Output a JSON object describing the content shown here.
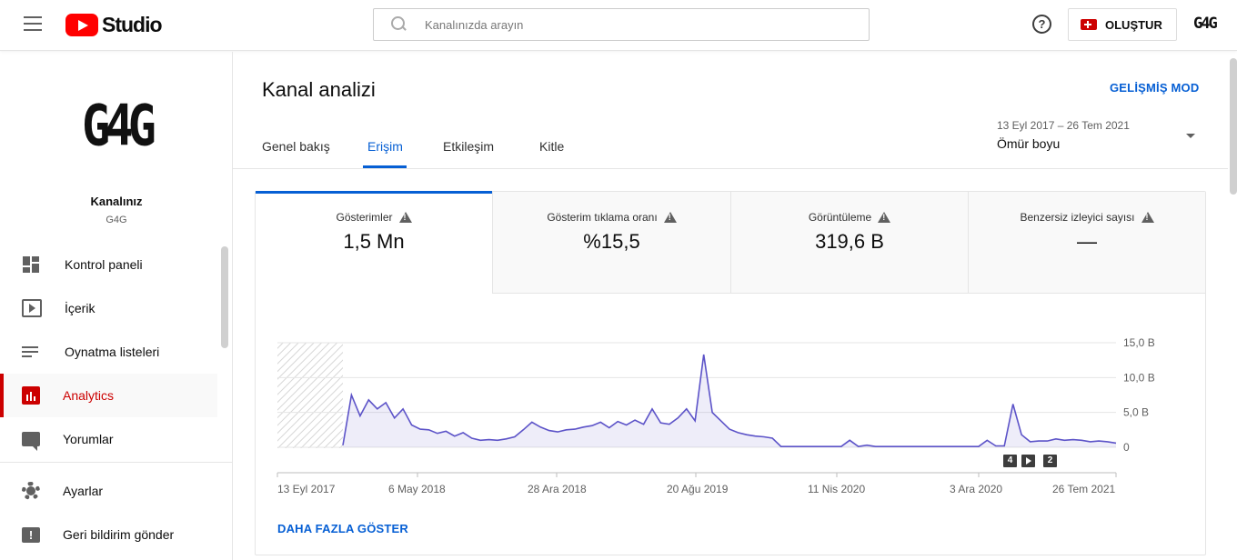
{
  "header": {
    "app_name": "Studio",
    "search_placeholder": "Kanalınızda arayın",
    "help_glyph": "?",
    "create_label": "OLUŞTUR",
    "avatar_text": "G4G"
  },
  "sidebar": {
    "channel_logo": "G4G",
    "channel_title": "Kanalınız",
    "channel_name": "G4G",
    "items": [
      {
        "label": "Kontrol paneli",
        "icon": "dashboard-icon"
      },
      {
        "label": "İçerik",
        "icon": "content-icon"
      },
      {
        "label": "Oynatma listeleri",
        "icon": "playlists-icon"
      },
      {
        "label": "Analytics",
        "icon": "analytics-icon",
        "active": true
      },
      {
        "label": "Yorumlar",
        "icon": "comments-icon"
      },
      {
        "label": "Ayarlar",
        "icon": "settings-icon"
      },
      {
        "label": "Geri bildirim gönder",
        "icon": "feedback-icon"
      }
    ]
  },
  "main": {
    "title": "Kanal analizi",
    "advanced_mode": "GELİŞMİŞ MOD",
    "tabs": [
      "Genel bakış",
      "Erişim",
      "Etkileşim",
      "Kitle"
    ],
    "active_tab": "Erişim",
    "date_range": "13 Eyl 2017 – 26 Tem 2021",
    "date_preset": "Ömür boyu",
    "show_more": "DAHA FAZLA GÖSTER"
  },
  "metrics": [
    {
      "label": "Gösterimler",
      "value": "1,5 Mn"
    },
    {
      "label": "Gösterim tıklama oranı",
      "value": "%15,5"
    },
    {
      "label": "Görüntüleme",
      "value": "319,6 B"
    },
    {
      "label": "Benzersiz izleyici sayısı",
      "value": "—"
    }
  ],
  "chart_data": {
    "type": "area",
    "series": [
      {
        "values": [
          0.3,
          7.5,
          4.5,
          6.8,
          5.5,
          6.4,
          4.2,
          5.5,
          3.2,
          2.6,
          2.5,
          2.0,
          2.3,
          1.6,
          2.1,
          1.3,
          1.0,
          1.1,
          1.0,
          1.2,
          1.5,
          2.5,
          3.6,
          2.9,
          2.4,
          2.2,
          2.5,
          2.6,
          2.9,
          3.1,
          3.6,
          2.8,
          3.7,
          3.2,
          3.9,
          3.3,
          5.5,
          3.5,
          3.3,
          4.2,
          5.5,
          3.8,
          13.3,
          5.0,
          3.8,
          2.6,
          2.1,
          1.8,
          1.6,
          1.5,
          1.3,
          0.1,
          0.1,
          0.1,
          0.1,
          0.1,
          0.1,
          0.1,
          0.1,
          1.0,
          0.1,
          0.3,
          0.1,
          0.1,
          0.1,
          0.1,
          0.1,
          0.1,
          0.1,
          0.1,
          0.1,
          0.1,
          0.1,
          0.1,
          0.1,
          1.0,
          0.2,
          0.2,
          6.2,
          1.8,
          0.8,
          0.9,
          0.9,
          1.2,
          1.0,
          1.1,
          1.0,
          0.8,
          0.9,
          0.8,
          0.6
        ]
      }
    ],
    "x_tick_labels": [
      "13 Eyl 2017",
      "6 May 2018",
      "28 Ara 2018",
      "20 Ağu 2019",
      "11 Nis 2020",
      "3 Ara 2020",
      "26 Tem 2021"
    ],
    "y_tick_labels": [
      "15,0 B",
      "10,0 B",
      "5,0 B",
      "0"
    ],
    "ylim": [
      0,
      15
    ],
    "grid": true,
    "color": "#5c53c8",
    "chips": [
      "4",
      "2"
    ]
  }
}
